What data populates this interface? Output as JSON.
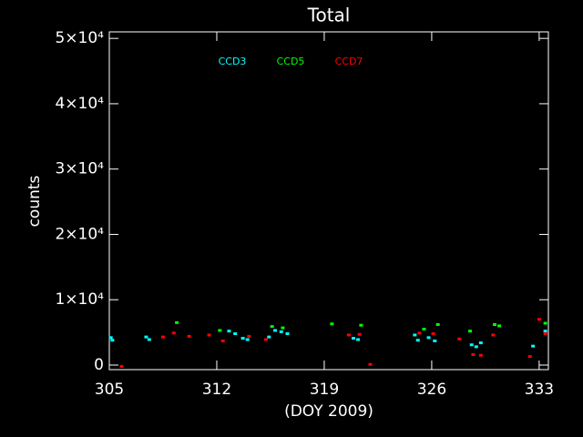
{
  "chart_data": {
    "type": "scatter",
    "title": "Total",
    "x_label": "(DOY 2009)",
    "y_label": "counts",
    "xlim": [
      305,
      333.6
    ],
    "xticks": [
      305,
      312,
      319,
      326,
      333
    ],
    "ylim": [
      -700,
      51000
    ],
    "yticks": [
      0,
      {
        "value": 10000,
        "label": "1×10⁴"
      },
      {
        "value": 20000,
        "label": "2×10⁴"
      },
      {
        "value": 30000,
        "label": "3×10⁴"
      },
      {
        "value": 40000,
        "label": "4×10⁴"
      },
      {
        "value": 50000,
        "label": "5×10⁴"
      }
    ],
    "series": [
      {
        "name": "CCD3",
        "color": "#00ffff",
        "x": [
          305.1,
          305.2,
          307.4,
          307.6,
          312.8,
          313.2,
          313.7,
          314.0,
          315.4,
          315.8,
          316.2,
          316.6,
          320.9,
          321.2,
          324.9,
          325.1,
          325.8,
          326.2,
          328.6,
          328.9,
          329.2,
          332.6,
          333.4
        ],
        "values": [
          4200,
          3800,
          4300,
          3900,
          5200,
          4800,
          4100,
          3900,
          4300,
          5300,
          5100,
          4800,
          4100,
          3900,
          4600,
          3800,
          4200,
          3700,
          3100,
          2800,
          3400,
          2900,
          5200
        ]
      },
      {
        "name": "CCD5",
        "color": "#00ff00",
        "x": [
          309.4,
          312.2,
          315.6,
          316.3,
          319.5,
          321.4,
          325.5,
          326.4,
          328.5,
          330.1,
          330.4,
          333.4
        ],
        "values": [
          6500,
          5300,
          5900,
          5700,
          6300,
          6100,
          5500,
          6200,
          5200,
          6200,
          6000,
          6400
        ]
      },
      {
        "name": "CCD7",
        "color": "#ff0000",
        "x": [
          305.8,
          308.5,
          309.2,
          310.2,
          311.5,
          312.4,
          314.1,
          315.2,
          320.6,
          321.3,
          322.0,
          325.2,
          326.1,
          327.8,
          328.7,
          329.2,
          330.0,
          332.4,
          333.0,
          333.4
        ],
        "values": [
          -200,
          4300,
          4900,
          4400,
          4600,
          3700,
          4400,
          3900,
          4600,
          4700,
          100,
          4900,
          4800,
          4000,
          1600,
          1500,
          4600,
          1300,
          7000,
          4800
        ]
      }
    ]
  }
}
